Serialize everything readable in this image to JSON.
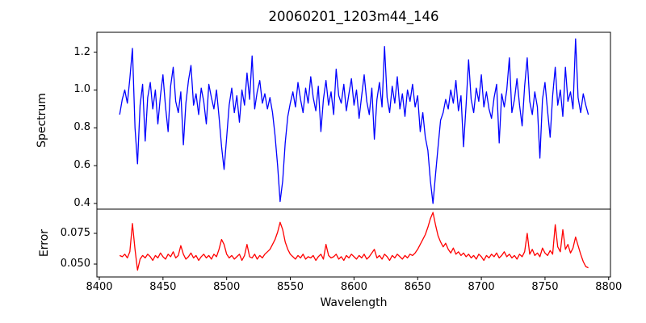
{
  "figure": {
    "background": "#ffffff",
    "spine_color": "#000000",
    "tick_color": "#000000",
    "text_color": "#000000"
  },
  "chart_data": [
    {
      "type": "line",
      "title": "20060201_1203m44_146",
      "ylabel": "Spectrum",
      "xlabel": "",
      "grid": false,
      "legend": null,
      "xlim": [
        8398.1,
        8801.4
      ],
      "ylim": [
        0.37,
        1.305
      ],
      "yticks": [
        0.4,
        0.6,
        0.8,
        1.0,
        1.2
      ],
      "ytick_labels": [
        "0.4",
        "0.6",
        "0.8",
        "1.0",
        "1.2"
      ],
      "xticks": [],
      "xtick_labels": [],
      "series": [
        {
          "name": "spectrum",
          "color": "#0000ff",
          "x_start": 8416,
          "x_step": 2,
          "values": [
            0.87,
            0.95,
            1.0,
            0.93,
            1.06,
            1.22,
            0.8,
            0.61,
            0.92,
            1.03,
            0.73,
            0.96,
            1.04,
            0.9,
            1.0,
            0.82,
            0.97,
            1.08,
            0.91,
            0.78,
            1.02,
            1.12,
            0.94,
            0.88,
            0.99,
            0.71,
            0.93,
            1.05,
            1.13,
            0.92,
            0.98,
            0.87,
            1.01,
            0.94,
            0.82,
            1.03,
            0.96,
            0.9,
            1.0,
            0.86,
            0.7,
            0.58,
            0.75,
            0.92,
            1.01,
            0.88,
            0.97,
            0.83,
            1.0,
            0.92,
            1.09,
            0.95,
            1.18,
            0.9,
            0.99,
            1.05,
            0.93,
            0.98,
            0.9,
            0.96,
            0.88,
            0.76,
            0.6,
            0.41,
            0.52,
            0.72,
            0.86,
            0.93,
            0.99,
            0.91,
            1.04,
            0.95,
            0.88,
            1.01,
            0.93,
            1.07,
            0.96,
            0.89,
            1.02,
            0.78,
            0.95,
            1.05,
            0.92,
            0.99,
            0.87,
            1.11,
            0.97,
            0.93,
            1.03,
            0.89,
            0.98,
            1.06,
            0.92,
            1.0,
            0.85,
            0.97,
            1.08,
            0.94,
            0.87,
            1.01,
            0.74,
            0.95,
            1.04,
            0.91,
            1.23,
            0.96,
            0.88,
            1.02,
            0.93,
            1.07,
            0.9,
            0.98,
            0.86,
            1.0,
            0.94,
            1.03,
            0.91,
            0.97,
            0.78,
            0.88,
            0.75,
            0.68,
            0.52,
            0.4,
            0.55,
            0.7,
            0.84,
            0.88,
            0.95,
            0.9,
            1.0,
            0.93,
            1.05,
            0.89,
            0.97,
            0.7,
            0.92,
            1.16,
            0.95,
            0.88,
            1.01,
            0.94,
            1.08,
            0.91,
            0.99,
            0.9,
            0.85,
            0.96,
            1.03,
            0.72,
            0.98,
            0.91,
            1.0,
            1.17,
            0.88,
            0.95,
            1.06,
            0.92,
            0.81,
            1.02,
            1.17,
            0.94,
            0.87,
            0.99,
            0.91,
            0.64,
            0.95,
            1.04,
            0.89,
            0.75,
            0.97,
            1.12,
            0.92,
            1.0,
            0.86,
            1.12,
            0.94,
            0.99,
            0.9,
            1.27,
            0.96,
            0.88,
            0.98,
            0.92,
            0.87
          ]
        }
      ]
    },
    {
      "type": "line",
      "title": "",
      "ylabel": "Error",
      "xlabel": "Wavelength",
      "grid": false,
      "legend": null,
      "xlim": [
        8398.1,
        8801.4
      ],
      "ylim": [
        0.0395,
        0.0947
      ],
      "yticks": [
        0.05,
        0.075
      ],
      "ytick_labels": [
        "0.050",
        "0.075"
      ],
      "xticks": [
        8400,
        8450,
        8500,
        8550,
        8600,
        8650,
        8700,
        8750,
        8800
      ],
      "xtick_labels": [
        "8400",
        "8450",
        "8500",
        "8550",
        "8600",
        "8650",
        "8700",
        "8750",
        "8800"
      ],
      "series": [
        {
          "name": "error",
          "color": "#ff0000",
          "x_start": 8416,
          "x_step": 2,
          "values": [
            0.057,
            0.056,
            0.058,
            0.055,
            0.06,
            0.083,
            0.062,
            0.045,
            0.054,
            0.057,
            0.055,
            0.058,
            0.056,
            0.053,
            0.057,
            0.055,
            0.059,
            0.056,
            0.054,
            0.058,
            0.056,
            0.06,
            0.055,
            0.057,
            0.065,
            0.058,
            0.054,
            0.056,
            0.059,
            0.055,
            0.057,
            0.053,
            0.056,
            0.058,
            0.055,
            0.057,
            0.054,
            0.058,
            0.056,
            0.062,
            0.07,
            0.066,
            0.058,
            0.055,
            0.057,
            0.054,
            0.056,
            0.058,
            0.053,
            0.057,
            0.066,
            0.056,
            0.055,
            0.058,
            0.054,
            0.057,
            0.055,
            0.058,
            0.06,
            0.062,
            0.066,
            0.07,
            0.076,
            0.084,
            0.078,
            0.068,
            0.062,
            0.058,
            0.056,
            0.054,
            0.057,
            0.055,
            0.058,
            0.054,
            0.056,
            0.055,
            0.057,
            0.053,
            0.056,
            0.058,
            0.054,
            0.066,
            0.057,
            0.055,
            0.056,
            0.058,
            0.054,
            0.056,
            0.053,
            0.057,
            0.055,
            0.058,
            0.056,
            0.054,
            0.057,
            0.055,
            0.058,
            0.054,
            0.056,
            0.059,
            0.062,
            0.055,
            0.057,
            0.054,
            0.058,
            0.056,
            0.053,
            0.057,
            0.055,
            0.058,
            0.056,
            0.054,
            0.057,
            0.055,
            0.058,
            0.057,
            0.059,
            0.062,
            0.066,
            0.07,
            0.074,
            0.08,
            0.087,
            0.092,
            0.082,
            0.073,
            0.068,
            0.064,
            0.067,
            0.062,
            0.059,
            0.063,
            0.058,
            0.06,
            0.057,
            0.059,
            0.056,
            0.058,
            0.055,
            0.057,
            0.054,
            0.058,
            0.056,
            0.053,
            0.057,
            0.055,
            0.058,
            0.056,
            0.059,
            0.055,
            0.057,
            0.06,
            0.056,
            0.058,
            0.055,
            0.057,
            0.054,
            0.058,
            0.056,
            0.06,
            0.075,
            0.058,
            0.062,
            0.057,
            0.059,
            0.056,
            0.063,
            0.059,
            0.057,
            0.061,
            0.058,
            0.082,
            0.064,
            0.06,
            0.078,
            0.062,
            0.066,
            0.059,
            0.063,
            0.072,
            0.065,
            0.058,
            0.052,
            0.048,
            0.047
          ]
        }
      ]
    }
  ]
}
